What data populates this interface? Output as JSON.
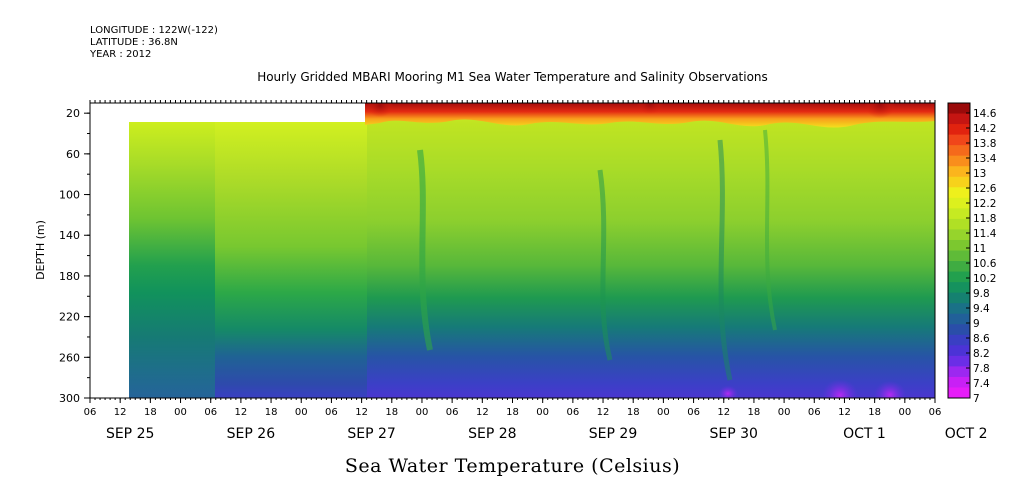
{
  "header": {
    "longitude": "LONGITUDE : 122W(-122)",
    "latitude": "LATITUDE : 36.8N",
    "year": "YEAR : 2012"
  },
  "chart_data": {
    "type": "heatmap",
    "title": "Hourly Gridded MBARI Mooring M1 Sea Water Temperature and Salinity Observations",
    "colorbar_label": "Sea Water Temperature (Celsius)",
    "ylabel": "DEPTH (m)",
    "ylim": [
      300,
      10
    ],
    "y_ticks": [
      20,
      60,
      100,
      140,
      180,
      220,
      260,
      300
    ],
    "x_hour_ticks": [
      "06",
      "12",
      "18",
      "00",
      "06",
      "12",
      "18",
      "00",
      "06",
      "12",
      "18",
      "00",
      "06",
      "12",
      "18",
      "00",
      "06",
      "12",
      "18",
      "00",
      "06",
      "12",
      "18",
      "00",
      "06",
      "12",
      "18",
      "00",
      "06"
    ],
    "x_day_labels": [
      "SEP 25",
      "SEP 26",
      "SEP 27",
      "SEP 28",
      "SEP 29",
      "SEP 30",
      "OCT  1",
      "OCT  2"
    ],
    "colorbar_levels": [
      "14.6",
      "14.2",
      "13.8",
      "13.4",
      "13",
      "12.6",
      "12.2",
      "11.8",
      "11.4",
      "11",
      "10.6",
      "10.2",
      "9.8",
      "9.4",
      "9",
      "8.6",
      "8.2",
      "7.8",
      "7.4",
      "7"
    ],
    "palette": [
      "#9a0a0a",
      "#c51512",
      "#e1230f",
      "#f0461a",
      "#f56a1b",
      "#f98e1c",
      "#fbb51d",
      "#f7d21b",
      "#eef01c",
      "#dcf01e",
      "#c6ea22",
      "#b0e025",
      "#96d42c",
      "#7cc82f",
      "#5fbb38",
      "#3fac42",
      "#22a04e",
      "#15925e",
      "#158170",
      "#1a7187",
      "#216099",
      "#2a4ea9",
      "#3a3fc3",
      "#4c33d6",
      "#6b2ee6",
      "#9c28f0",
      "#c820f5",
      "#e61cf8"
    ],
    "approx_temperature_profile": [
      {
        "depth": 10,
        "temp": 13.0
      },
      {
        "depth": 20,
        "temp": 11.8
      },
      {
        "depth": 60,
        "temp": 10.9
      },
      {
        "depth": 100,
        "temp": 10.5
      },
      {
        "depth": 140,
        "temp": 10.1
      },
      {
        "depth": 180,
        "temp": 9.7
      },
      {
        "depth": 220,
        "temp": 9.0
      },
      {
        "depth": 260,
        "temp": 8.3
      },
      {
        "depth": 300,
        "temp": 7.9
      }
    ]
  }
}
